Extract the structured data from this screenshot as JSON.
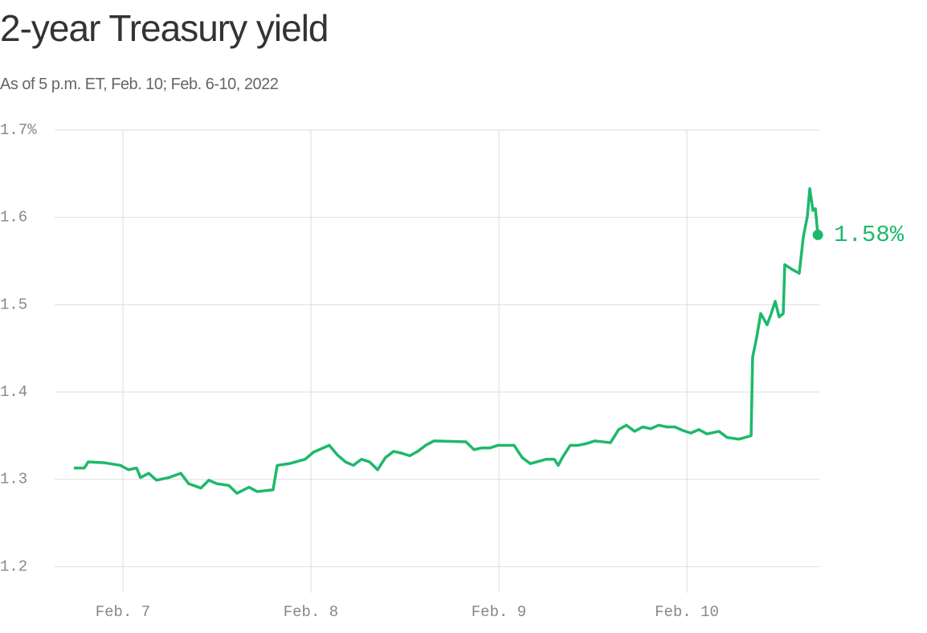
{
  "title": "2-year Treasury yield",
  "subtitle": "As of 5 p.m. ET, Feb. 10; Feb. 6-10, 2022",
  "chart_data": {
    "type": "line",
    "x": [
      6.739,
      6.795,
      6.816,
      6.902,
      6.987,
      7.03,
      7.073,
      7.094,
      7.137,
      7.179,
      7.244,
      7.308,
      7.35,
      7.415,
      7.457,
      7.5,
      7.564,
      7.607,
      7.671,
      7.714,
      7.799,
      7.821,
      7.885,
      7.97,
      8.013,
      8.098,
      8.141,
      8.184,
      8.226,
      8.269,
      8.312,
      8.355,
      8.397,
      8.44,
      8.483,
      8.526,
      8.568,
      8.611,
      8.654,
      8.825,
      8.868,
      8.91,
      8.953,
      8.996,
      9.081,
      9.124,
      9.167,
      9.252,
      9.295,
      9.316,
      9.338,
      9.38,
      9.423,
      9.466,
      9.509,
      9.594,
      9.637,
      9.679,
      9.722,
      9.765,
      9.808,
      9.85,
      9.893,
      9.936,
      9.979,
      10.021,
      10.064,
      10.107,
      10.171,
      10.214,
      10.278,
      10.342,
      10.35,
      10.372,
      10.393,
      10.427,
      10.449,
      10.47,
      10.491,
      10.513,
      10.521,
      10.556,
      10.598,
      10.62,
      10.641,
      10.654,
      10.671,
      10.684,
      10.697
    ],
    "series": [
      {
        "name": "2-year Treasury yield",
        "color": "#1db96a",
        "values": [
          1.313,
          1.313,
          1.32,
          1.319,
          1.316,
          1.311,
          1.313,
          1.302,
          1.307,
          1.299,
          1.302,
          1.307,
          1.295,
          1.29,
          1.299,
          1.295,
          1.293,
          1.284,
          1.291,
          1.286,
          1.288,
          1.316,
          1.318,
          1.323,
          1.331,
          1.339,
          1.328,
          1.32,
          1.316,
          1.323,
          1.32,
          1.311,
          1.325,
          1.332,
          1.33,
          1.327,
          1.332,
          1.339,
          1.344,
          1.343,
          1.334,
          1.336,
          1.336,
          1.339,
          1.339,
          1.325,
          1.318,
          1.323,
          1.323,
          1.316,
          1.325,
          1.339,
          1.339,
          1.341,
          1.344,
          1.342,
          1.357,
          1.362,
          1.355,
          1.36,
          1.358,
          1.362,
          1.36,
          1.36,
          1.356,
          1.353,
          1.357,
          1.352,
          1.355,
          1.348,
          1.346,
          1.35,
          1.44,
          1.463,
          1.49,
          1.477,
          1.49,
          1.504,
          1.486,
          1.49,
          1.546,
          1.541,
          1.536,
          1.578,
          1.601,
          1.633,
          1.608,
          1.61,
          1.58
        ],
        "last_label": "1.58%"
      }
    ],
    "xlim": [
      6.637,
      10.705
    ],
    "xticks": [
      {
        "value": 7,
        "label": "Feb. 7"
      },
      {
        "value": 8,
        "label": "Feb. 8"
      },
      {
        "value": 9,
        "label": "Feb. 9"
      },
      {
        "value": 10,
        "label": "Feb. 10"
      }
    ],
    "ylim": [
      1.17,
      1.7
    ],
    "yticks": [
      1.2,
      1.3,
      1.4,
      1.5,
      1.6,
      {
        "value": 1.7,
        "label": "1.7%"
      }
    ],
    "grid": true
  }
}
